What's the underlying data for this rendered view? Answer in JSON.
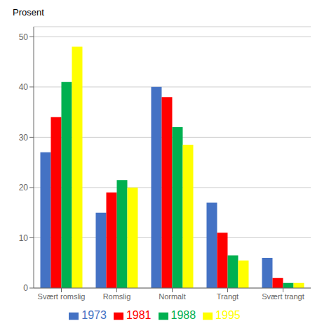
{
  "chart_data": {
    "type": "bar",
    "ylabel": "Prosent",
    "categories": [
      "Svært romslig",
      "Romslig",
      "Normalt",
      "Trangt",
      "Svært trangt"
    ],
    "series": [
      {
        "name": "1973",
        "color": "#4472C4",
        "values": [
          27,
          15,
          40,
          17,
          6
        ]
      },
      {
        "name": "1981",
        "color": "#FF0000",
        "values": [
          34,
          19,
          38,
          11,
          2
        ]
      },
      {
        "name": "1988",
        "color": "#00B050",
        "values": [
          41,
          21.5,
          32,
          6.5,
          1
        ]
      },
      {
        "name": "1995",
        "color": "#FFFF00",
        "values": [
          48,
          20,
          28.5,
          5.5,
          1
        ]
      }
    ],
    "ylim": [
      0,
      52
    ],
    "yticks": [
      0,
      10,
      20,
      30,
      40,
      50
    ],
    "grid": true,
    "legend": "bottom"
  }
}
